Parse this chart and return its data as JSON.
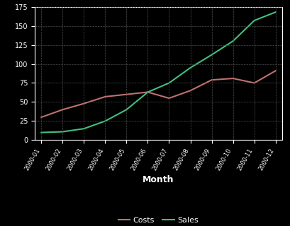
{
  "months": [
    "2000-01",
    "2000-02",
    "2000-03",
    "2000-04",
    "2000-05",
    "2000-06",
    "2000-07",
    "2000-08",
    "2000-09",
    "2000-10",
    "2000-11",
    "2000-12"
  ],
  "costs": [
    30,
    40,
    48,
    57,
    60,
    63,
    55,
    65,
    79,
    81,
    75,
    91
  ],
  "sales": [
    10,
    11,
    15,
    25,
    40,
    63,
    75,
    95,
    112,
    130,
    157,
    168
  ],
  "costs_color": "#c07070",
  "sales_color": "#40c080",
  "background_color": "#000000",
  "plot_bg_color": "#000000",
  "text_color": "#ffffff",
  "grid_color": "#555555",
  "xlabel": "Month",
  "ylim": [
    0,
    175
  ],
  "yticks": [
    0,
    25,
    50,
    75,
    100,
    125,
    150,
    175
  ],
  "legend_costs": "Costs",
  "legend_sales": "Sales",
  "line_width": 1.5,
  "tick_fontsize": 6,
  "xlabel_fontsize": 9,
  "legend_fontsize": 8
}
